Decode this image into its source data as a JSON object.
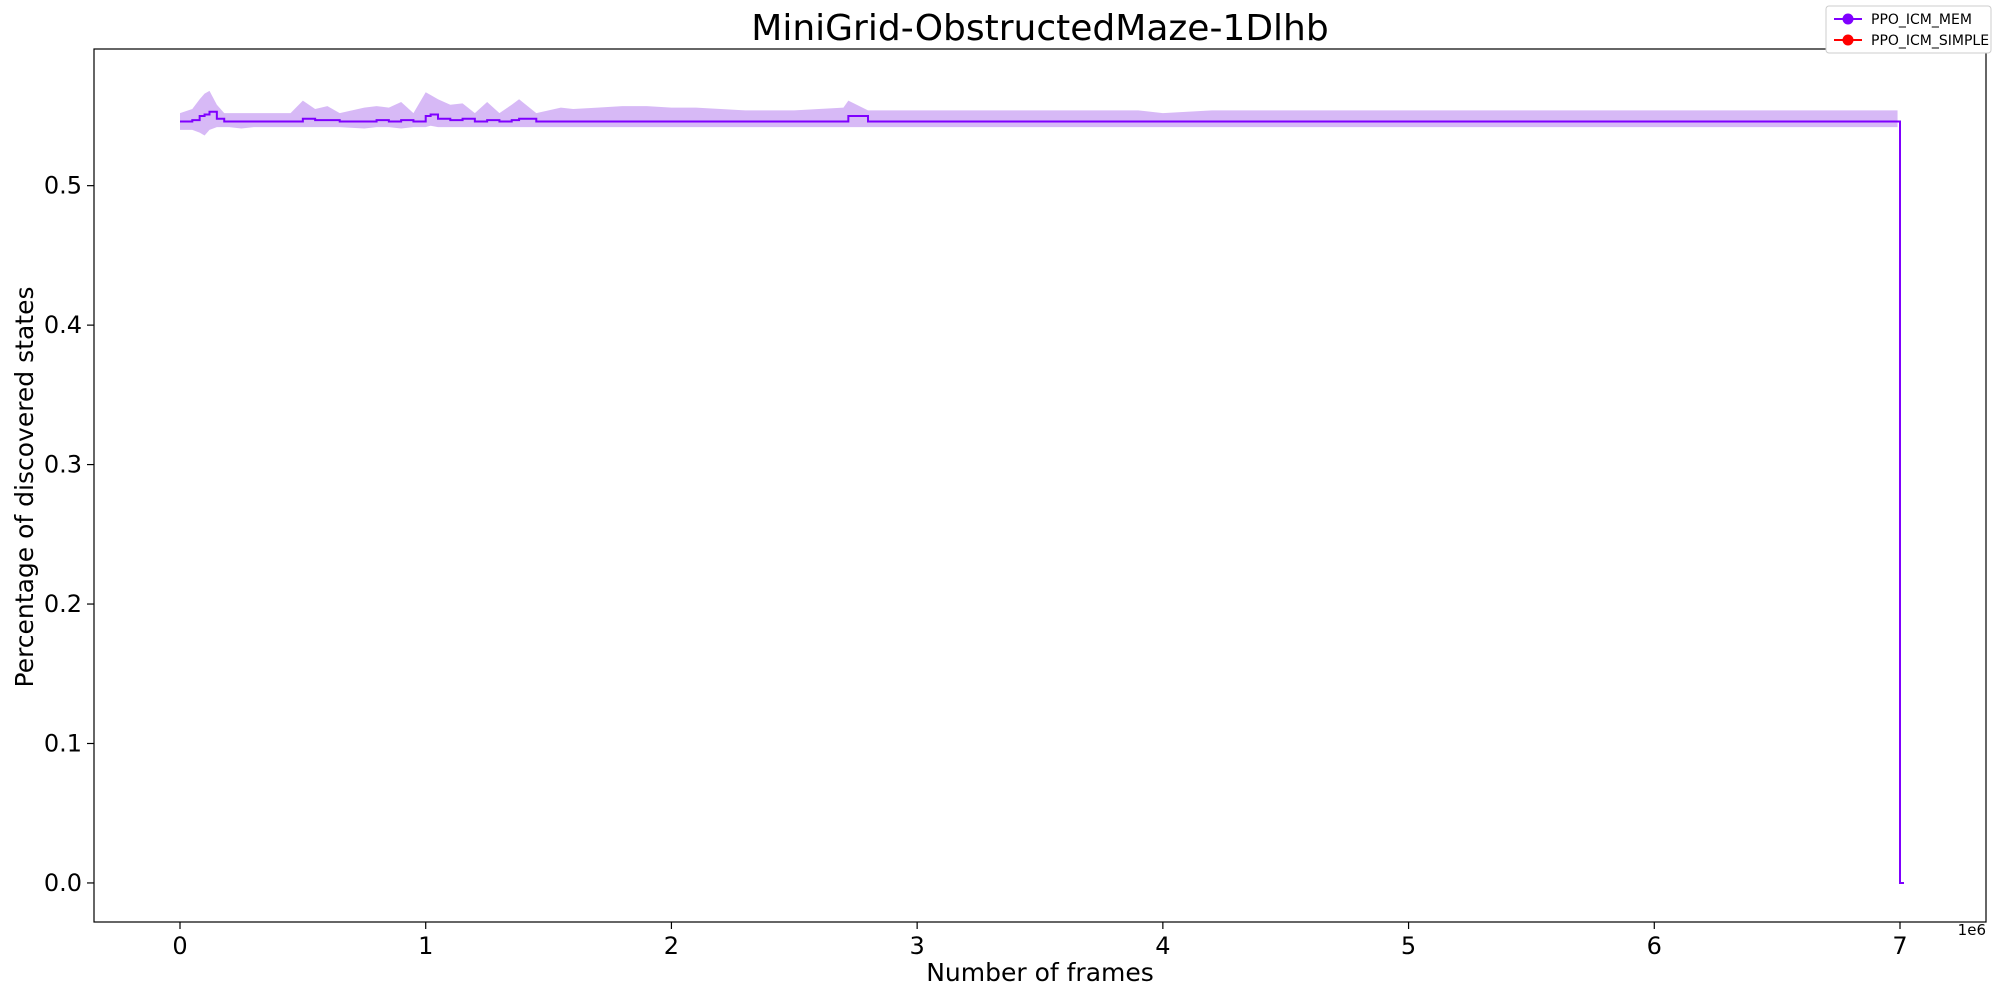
{
  "chart_data": {
    "type": "line",
    "title": "MiniGrid-ObstructedMaze-1Dlhb",
    "xlabel": "Number of frames",
    "ylabel": "Percentage of discovered states",
    "x_offset_label": "1e6",
    "xlim": [
      -0.35,
      7.35
    ],
    "ylim": [
      -0.028,
      0.598
    ],
    "x_ticks": [
      0,
      1,
      2,
      3,
      4,
      5,
      6,
      7
    ],
    "x_tick_labels": [
      "0",
      "1",
      "2",
      "3",
      "4",
      "5",
      "6",
      "7"
    ],
    "y_ticks": [
      0.0,
      0.1,
      0.2,
      0.3,
      0.4,
      0.5
    ],
    "y_tick_labels": [
      "0.0",
      "0.1",
      "0.2",
      "0.3",
      "0.4",
      "0.5"
    ],
    "grid": false,
    "legend_position": "top-right",
    "series": [
      {
        "name": "PPO_ICM_MEM",
        "color": "#7f00ff",
        "band_color": "#b780ee",
        "x": [
          0.0,
          0.05,
          0.08,
          0.1,
          0.12,
          0.15,
          0.18,
          0.2,
          0.25,
          0.3,
          0.35,
          0.45,
          0.5,
          0.55,
          0.6,
          0.65,
          0.75,
          0.8,
          0.85,
          0.9,
          0.95,
          1.0,
          1.02,
          1.05,
          1.1,
          1.15,
          1.2,
          1.25,
          1.3,
          1.35,
          1.38,
          1.45,
          1.55,
          1.6,
          1.7,
          1.8,
          1.9,
          2.0,
          2.1,
          2.3,
          2.4,
          2.5,
          2.6,
          2.7,
          2.72,
          2.8,
          3.0,
          3.4,
          3.7,
          3.8,
          3.9,
          4.0,
          4.2,
          5.0,
          6.0,
          6.5,
          6.95,
          6.99,
          7.0
        ],
        "values": [
          0.546,
          0.547,
          0.55,
          0.551,
          0.553,
          0.548,
          0.546,
          0.546,
          0.546,
          0.546,
          0.546,
          0.546,
          0.548,
          0.547,
          0.547,
          0.546,
          0.546,
          0.547,
          0.546,
          0.547,
          0.546,
          0.55,
          0.551,
          0.548,
          0.547,
          0.548,
          0.546,
          0.547,
          0.546,
          0.547,
          0.548,
          0.546,
          0.546,
          0.546,
          0.546,
          0.546,
          0.546,
          0.546,
          0.546,
          0.546,
          0.546,
          0.546,
          0.546,
          0.546,
          0.55,
          0.546,
          0.546,
          0.546,
          0.546,
          0.546,
          0.546,
          0.546,
          0.546,
          0.546,
          0.546,
          0.546,
          0.546,
          0.546,
          0.0
        ],
        "lower": [
          0.54,
          0.54,
          0.538,
          0.536,
          0.54,
          0.542,
          0.542,
          0.542,
          0.541,
          0.542,
          0.542,
          0.542,
          0.542,
          0.542,
          0.542,
          0.542,
          0.541,
          0.542,
          0.542,
          0.541,
          0.542,
          0.542,
          0.543,
          0.542,
          0.542,
          0.542,
          0.542,
          0.542,
          0.542,
          0.542,
          0.542,
          0.542,
          0.542,
          0.542,
          0.542,
          0.542,
          0.542,
          0.542,
          0.542,
          0.542,
          0.542,
          0.542,
          0.542,
          0.542,
          0.542,
          0.542,
          0.542,
          0.542,
          0.542,
          0.542,
          0.542,
          0.542,
          0.542,
          0.542,
          0.542,
          0.542,
          0.542,
          0.542,
          0.0
        ],
        "upper": [
          0.552,
          0.555,
          0.562,
          0.566,
          0.568,
          0.558,
          0.552,
          0.552,
          0.552,
          0.552,
          0.552,
          0.552,
          0.561,
          0.555,
          0.557,
          0.552,
          0.556,
          0.557,
          0.556,
          0.56,
          0.552,
          0.567,
          0.565,
          0.562,
          0.558,
          0.559,
          0.552,
          0.56,
          0.552,
          0.558,
          0.562,
          0.552,
          0.556,
          0.555,
          0.556,
          0.557,
          0.557,
          0.556,
          0.556,
          0.554,
          0.554,
          0.554,
          0.555,
          0.556,
          0.561,
          0.554,
          0.554,
          0.554,
          0.554,
          0.554,
          0.554,
          0.552,
          0.554,
          0.554,
          0.554,
          0.554,
          0.554,
          0.554,
          0.0
        ]
      },
      {
        "name": "PPO_ICM_SIMPLE",
        "color": "#ff0000",
        "x": [],
        "values": []
      }
    ]
  }
}
